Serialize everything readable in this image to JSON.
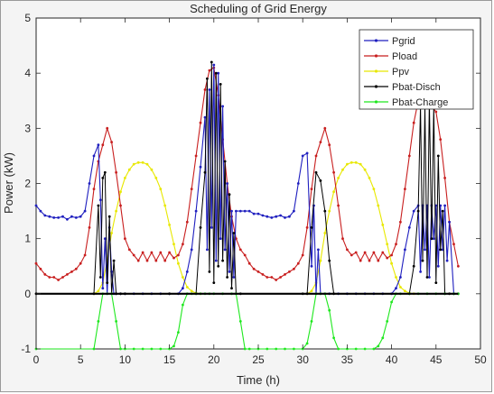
{
  "chart_data": {
    "type": "line",
    "title": "Scheduling of Grid Energy",
    "xlabel": "Time (h)",
    "ylabel": "Power (kW)",
    "xlim": [
      0,
      50
    ],
    "ylim": [
      -1,
      5
    ],
    "xticks": [
      "0",
      "5",
      "10",
      "15",
      "20",
      "25",
      "30",
      "35",
      "40",
      "45",
      "50"
    ],
    "yticks": [
      "-1",
      "0",
      "1",
      "2",
      "3",
      "4",
      "5"
    ],
    "grid": false,
    "legend": "top-right",
    "series": [
      {
        "name": "Pgrid",
        "color": "#1f1fbf",
        "x": [
          0,
          0.5,
          1,
          1.5,
          2,
          2.5,
          3,
          3.5,
          4,
          4.5,
          5,
          5.5,
          6,
          6.5,
          7,
          7.25,
          7.5,
          7.75,
          8,
          8.25,
          8.5,
          8.75,
          9,
          9.5,
          10,
          11,
          12,
          13,
          14,
          15,
          16,
          16.5,
          17,
          17.5,
          18,
          18.5,
          19,
          19.25,
          19.5,
          19.75,
          20,
          20.25,
          20.5,
          20.75,
          21,
          21.25,
          21.5,
          21.75,
          22,
          22.25,
          22.5,
          23,
          23.5,
          24,
          24.5,
          25,
          25.5,
          26,
          26.5,
          27,
          27.5,
          28,
          28.5,
          29,
          29.5,
          30,
          30.5,
          31,
          31.25,
          31.5,
          31.75,
          32,
          32.5,
          33,
          34,
          35,
          36,
          37,
          38,
          39,
          40,
          40.5,
          41,
          41.5,
          42,
          42.5,
          43,
          43.25,
          43.5,
          43.75,
          44,
          44.25,
          44.5,
          44.75,
          45,
          45.25,
          45.5,
          45.75,
          46,
          46.25,
          46.5,
          47
        ],
        "y": [
          1.6,
          1.5,
          1.42,
          1.4,
          1.38,
          1.38,
          1.4,
          1.35,
          1.4,
          1.38,
          1.4,
          1.5,
          2.0,
          2.5,
          2.7,
          1.7,
          0.1,
          1.0,
          0.0,
          1.2,
          0.4,
          0.0,
          0.0,
          0.0,
          0.0,
          0.0,
          0.0,
          0.0,
          0.0,
          0.0,
          0.0,
          0.1,
          0.4,
          0.8,
          1.5,
          2.3,
          3.2,
          0.8,
          3.7,
          1.2,
          4.15,
          0.6,
          4.0,
          1.0,
          3.4,
          0.8,
          2.0,
          0.4,
          1.5,
          0.3,
          1.5,
          1.5,
          1.5,
          1.5,
          1.45,
          1.45,
          1.42,
          1.4,
          1.38,
          1.4,
          1.42,
          1.38,
          1.4,
          1.5,
          2.0,
          2.5,
          2.55,
          0.5,
          1.6,
          0.0,
          0.8,
          0.0,
          0.0,
          0.0,
          0.0,
          0.0,
          0.0,
          0.0,
          0.0,
          0.0,
          0.0,
          0.1,
          0.3,
          0.8,
          1.2,
          1.5,
          1.6,
          0.4,
          1.6,
          0.8,
          1.6,
          0.3,
          1.6,
          1.0,
          1.6,
          0.5,
          1.6,
          0.8,
          1.6,
          0.6,
          1.3,
          0.0
        ]
      },
      {
        "name": "Pload",
        "color": "#c81e1e",
        "x": [
          0,
          0.5,
          1,
          1.5,
          2,
          2.5,
          3,
          3.5,
          4,
          4.5,
          5,
          5.5,
          6,
          6.5,
          7,
          7.5,
          8,
          8.5,
          9,
          9.5,
          10,
          10.5,
          11,
          11.5,
          12,
          12.5,
          13,
          13.5,
          14,
          14.5,
          15,
          15.5,
          16,
          16.5,
          17,
          17.5,
          18,
          18.5,
          19,
          19.5,
          20,
          20.5,
          21,
          21.5,
          22,
          22.5,
          23,
          23.5,
          24,
          24.5,
          25,
          25.5,
          26,
          26.5,
          27,
          27.5,
          28,
          28.5,
          29,
          29.5,
          30,
          30.5,
          31,
          31.5,
          32,
          32.5,
          33,
          33.5,
          34,
          34.5,
          35,
          35.5,
          36,
          36.5,
          37,
          37.5,
          38,
          38.5,
          39,
          39.5,
          40,
          40.5,
          41,
          41.5,
          42,
          42.5,
          43,
          43.5,
          44,
          44.5,
          45,
          45.5,
          46,
          46.5,
          47,
          47.5
        ],
        "y": [
          0.55,
          0.45,
          0.35,
          0.3,
          0.3,
          0.25,
          0.3,
          0.35,
          0.4,
          0.45,
          0.55,
          0.7,
          1.2,
          1.9,
          2.4,
          2.7,
          3.0,
          2.75,
          2.2,
          1.6,
          1.0,
          0.8,
          0.7,
          0.6,
          0.75,
          0.6,
          0.75,
          0.6,
          0.75,
          0.6,
          0.75,
          0.65,
          0.7,
          0.9,
          1.3,
          1.9,
          2.5,
          3.1,
          3.7,
          4.05,
          4.1,
          3.6,
          2.8,
          2.0,
          1.4,
          1.0,
          0.8,
          0.7,
          0.55,
          0.45,
          0.4,
          0.35,
          0.3,
          0.3,
          0.25,
          0.3,
          0.35,
          0.4,
          0.45,
          0.55,
          0.7,
          1.2,
          1.9,
          2.5,
          2.75,
          3.0,
          2.7,
          2.2,
          1.6,
          1.0,
          0.8,
          0.7,
          0.75,
          0.6,
          0.75,
          0.6,
          0.75,
          0.6,
          0.75,
          0.65,
          0.7,
          0.9,
          1.3,
          1.9,
          2.5,
          3.1,
          3.5,
          3.45,
          3.5,
          3.4,
          3.3,
          2.8,
          2.1,
          1.3,
          0.9,
          0.5
        ]
      },
      {
        "name": "Ppv",
        "color": "#e8e800",
        "x": [
          6.5,
          7,
          7.5,
          8,
          8.5,
          9,
          9.5,
          10,
          10.5,
          11,
          11.5,
          12,
          12.5,
          13,
          13.5,
          14,
          14.5,
          15,
          15.5,
          16,
          16.5,
          17,
          17.5,
          18,
          18.5,
          30.5,
          31,
          31.5,
          32,
          32.5,
          33,
          33.5,
          34,
          34.5,
          35,
          35.5,
          36,
          36.5,
          37,
          37.5,
          38,
          38.5,
          39,
          39.5,
          40,
          40.5,
          41,
          41.5,
          42,
          42.5
        ],
        "y": [
          0.0,
          0.05,
          0.2,
          0.6,
          1.1,
          1.5,
          1.85,
          2.1,
          2.25,
          2.35,
          2.38,
          2.38,
          2.35,
          2.25,
          2.1,
          1.9,
          1.6,
          1.25,
          0.9,
          0.55,
          0.3,
          0.12,
          0.05,
          0.01,
          0.0,
          0.0,
          0.05,
          0.2,
          0.6,
          1.1,
          1.5,
          1.85,
          2.1,
          2.25,
          2.35,
          2.38,
          2.38,
          2.35,
          2.25,
          2.1,
          1.9,
          1.6,
          1.25,
          0.9,
          0.55,
          0.3,
          0.12,
          0.05,
          0.01,
          0.0
        ]
      },
      {
        "name": "Pbat-Disch",
        "color": "#000000",
        "x": [
          0,
          6.5,
          7,
          7.25,
          7.5,
          7.75,
          8,
          8.25,
          8.5,
          8.75,
          9,
          9.5,
          10,
          15,
          18,
          18.5,
          19,
          19.25,
          19.5,
          19.75,
          20,
          20.25,
          20.5,
          20.75,
          21,
          21.25,
          21.5,
          21.75,
          22,
          22.25,
          22.5,
          23,
          30,
          30.5,
          31,
          31.5,
          32,
          32.5,
          33,
          33.5,
          42,
          42.5,
          43,
          43.25,
          43.5,
          43.75,
          44,
          44.25,
          44.5,
          44.75,
          45,
          45.25,
          45.5,
          45.75,
          46,
          46.5,
          47,
          47.5
        ],
        "y": [
          0,
          0,
          1.6,
          0.3,
          2.1,
          2.2,
          0.2,
          1.4,
          0.0,
          0.6,
          0.0,
          0.0,
          0.0,
          0.0,
          0.0,
          1.2,
          2.2,
          3.9,
          0.4,
          4.2,
          0.2,
          4.0,
          0.5,
          3.8,
          0.6,
          2.4,
          0.3,
          1.8,
          0.1,
          1.1,
          0.0,
          0.0,
          0.0,
          0.0,
          1.2,
          2.2,
          2.05,
          1.5,
          0.6,
          0.0,
          0.0,
          0.5,
          1.5,
          3.4,
          0.6,
          3.4,
          0.3,
          3.5,
          1.0,
          3.4,
          0.2,
          2.5,
          0.8,
          1.5,
          0.0,
          0.0,
          0.0,
          0.0
        ]
      },
      {
        "name": "Pbat-Charge",
        "color": "#1ee81e",
        "x": [
          0,
          6.5,
          7,
          7.5,
          8,
          8.5,
          9,
          9.5,
          10,
          11,
          12,
          13,
          14,
          15,
          15.5,
          16,
          16.5,
          17,
          17.5,
          18,
          18.5,
          19,
          19.5,
          20,
          21,
          22,
          22.5,
          23,
          23.5,
          24,
          25,
          26,
          27,
          28,
          29,
          30,
          30.5,
          31,
          31.5,
          32,
          32.5,
          33,
          33.5,
          34,
          35,
          36,
          37,
          38,
          38.5,
          39,
          39.5,
          40,
          40.5,
          41,
          42,
          43,
          44,
          45,
          46,
          47,
          47.5
        ],
        "y": [
          -1,
          -1,
          -0.5,
          0.0,
          0.0,
          0.0,
          -0.5,
          -1.0,
          -1.0,
          -1.0,
          -1.0,
          -1.0,
          -1.0,
          -1.0,
          -0.95,
          -0.7,
          -0.2,
          0.0,
          0.0,
          0.0,
          0.0,
          0.0,
          0.0,
          0.0,
          0.0,
          0.0,
          0.0,
          -0.5,
          -1.0,
          -1.0,
          -1.0,
          -1.0,
          -1.0,
          -1.0,
          -1.0,
          -1.0,
          -0.9,
          -0.5,
          0.0,
          0.0,
          0.0,
          -0.3,
          -0.8,
          -1.0,
          -1.0,
          -1.0,
          -1.0,
          -1.0,
          -0.95,
          -0.8,
          -0.5,
          -0.15,
          0.0,
          0.0,
          0.0,
          0.0,
          0.0,
          0.0,
          0.0,
          0.0,
          0.0
        ]
      }
    ]
  }
}
